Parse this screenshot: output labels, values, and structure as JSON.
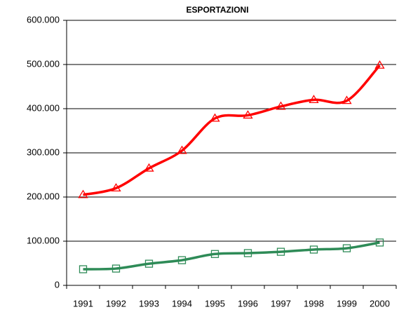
{
  "chart_data": {
    "type": "line",
    "title": "ESPORTAZIONI",
    "categories": [
      "1991",
      "1992",
      "1993",
      "1994",
      "1995",
      "1996",
      "1997",
      "1998",
      "1999",
      "2000"
    ],
    "series": [
      {
        "color": "#ff0000",
        "marker": "triangle",
        "values": [
          205000,
          220000,
          265000,
          305000,
          378000,
          385000,
          405000,
          420000,
          418000,
          498000
        ]
      },
      {
        "color": "#2e8b57",
        "marker": "square",
        "values": [
          36500,
          38000,
          49000,
          57000,
          71000,
          73000,
          76000,
          81000,
          84000,
          97000
        ]
      }
    ],
    "ylim": [
      0,
      600000
    ],
    "yticks": [
      0,
      {
        "value": 100000,
        "label": "100.000"
      },
      {
        "value": 200000,
        "label": "200.000"
      },
      {
        "value": 300000,
        "label": "300.000"
      },
      {
        "value": 400000,
        "label": "400.000"
      },
      {
        "value": 500000,
        "label": "500.000"
      },
      {
        "value": 600000,
        "label": "600.000"
      }
    ],
    "grid": true,
    "smooth": true
  }
}
